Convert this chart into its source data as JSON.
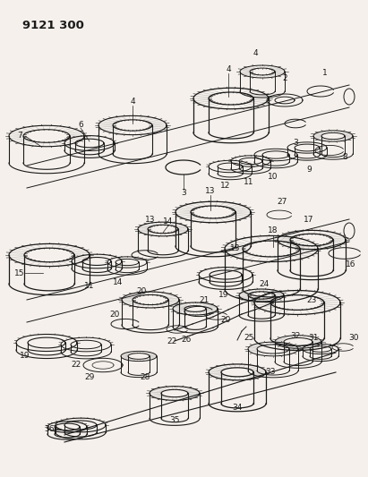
{
  "title": "9121 300",
  "bg": "#f5f0eb",
  "lc": "#1a1a1a",
  "fig_w": 4.11,
  "fig_h": 5.33,
  "dpi": 100
}
